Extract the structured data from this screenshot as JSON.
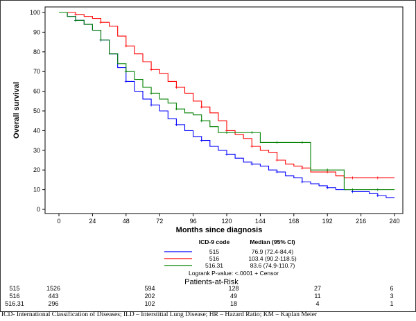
{
  "chart_data": {
    "type": "line",
    "subtype": "kaplan-meier",
    "xlabel": "Months since diagnosis",
    "ylabel": "Overall survival",
    "xlim": [
      0,
      240
    ],
    "ylim": [
      0,
      100
    ],
    "xticks": [
      0,
      24,
      48,
      72,
      96,
      120,
      144,
      168,
      192,
      216,
      240
    ],
    "yticks": [
      0,
      10,
      20,
      30,
      40,
      50,
      60,
      70,
      80,
      90,
      100
    ],
    "grid": false,
    "legend": {
      "placement": "below-plot",
      "header_code": "ICD-9 code",
      "header_median": "Median (95% CI)",
      "footer": "Logrank P-value: <.0001  +  Censor"
    },
    "series": [
      {
        "name": "515",
        "color": "#0000ff",
        "median": "76.9 (72.4-84.4)",
        "x": [
          0,
          6,
          12,
          18,
          24,
          30,
          36,
          42,
          48,
          54,
          60,
          66,
          72,
          78,
          84,
          90,
          96,
          102,
          108,
          114,
          120,
          126,
          132,
          138,
          144,
          150,
          156,
          162,
          168,
          174,
          180,
          186,
          192,
          198,
          204,
          210,
          216,
          222,
          228,
          234,
          240
        ],
        "y": [
          100,
          98,
          96,
          94,
          91,
          86,
          79,
          72,
          65,
          60,
          56,
          53,
          50,
          46,
          43,
          40,
          37,
          35,
          32,
          30,
          28,
          26,
          24,
          23,
          22,
          20,
          19,
          17,
          16,
          14,
          13,
          12,
          11,
          10,
          10,
          9,
          9,
          8,
          7,
          6,
          6
        ]
      },
      {
        "name": "516",
        "color": "#ff0000",
        "median": "103.4 (90.2-118.5)",
        "x": [
          0,
          6,
          12,
          18,
          24,
          30,
          36,
          42,
          48,
          54,
          60,
          66,
          72,
          78,
          84,
          90,
          96,
          102,
          108,
          114,
          120,
          126,
          132,
          138,
          144,
          150,
          156,
          162,
          168,
          174,
          180,
          186,
          192,
          198,
          204,
          210,
          216,
          222,
          228,
          234,
          240
        ],
        "y": [
          100,
          100,
          99,
          98,
          97,
          95,
          93,
          88,
          83,
          79,
          75,
          71,
          69,
          65,
          62,
          59,
          55,
          52,
          49,
          45,
          40,
          38,
          36,
          32,
          30,
          29,
          25,
          23,
          22,
          21,
          19,
          19,
          19,
          17,
          16,
          16,
          16,
          16,
          16,
          16,
          16
        ]
      },
      {
        "name": "516.31",
        "color": "#008000",
        "median": "83.6 (74.9-110.7)",
        "x": [
          0,
          6,
          12,
          18,
          24,
          30,
          36,
          42,
          48,
          54,
          60,
          66,
          72,
          78,
          84,
          90,
          96,
          102,
          108,
          114,
          120,
          126,
          132,
          138,
          144,
          150,
          156,
          162,
          168,
          174,
          180,
          186,
          192,
          198,
          204,
          210,
          216,
          222,
          228,
          234,
          240
        ],
        "y": [
          100,
          98,
          96,
          94,
          91,
          86,
          79,
          74,
          70,
          66,
          62,
          59,
          56,
          54,
          51,
          49,
          48,
          45,
          42,
          39,
          39,
          39,
          39,
          39,
          34,
          34,
          34,
          34,
          34,
          34,
          20,
          20,
          20,
          20,
          10,
          10,
          10,
          10,
          10,
          10,
          10
        ]
      }
    ],
    "at_risk": {
      "title": "Patients-at-Risk",
      "rows": [
        {
          "name": "515",
          "color": "#0000ff",
          "values": [
            "1526",
            "594",
            "128",
            "27",
            "6"
          ]
        },
        {
          "name": "516",
          "color": "#ff0000",
          "values": [
            "443",
            "202",
            "49",
            "11",
            "3"
          ]
        },
        {
          "name": "516.31",
          "color": "#008000",
          "values": [
            "296",
            "102",
            "18",
            "4",
            "1"
          ]
        }
      ]
    }
  },
  "caption": "ICD- International Classification of Diseases; ILD – Interstitial Lung Disease; HR – Hazard Ratio; KM – Kaplan Meier"
}
